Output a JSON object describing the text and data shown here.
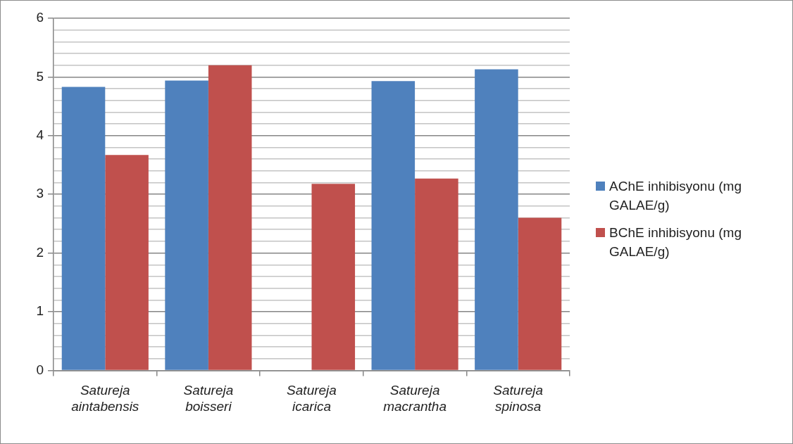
{
  "chart_data": {
    "type": "bar",
    "categories": [
      "Satureja aintabensis",
      "Satureja boisseri",
      "Satureja icarica",
      "Satureja macrantha",
      "Satureja spinosa"
    ],
    "series": [
      {
        "name": "AChE inhibisyonu (mg GALAE/g)",
        "color": "#4f81bd",
        "values": [
          4.83,
          4.94,
          null,
          4.93,
          5.13
        ]
      },
      {
        "name": "BChE inhibisyonu (mg GALAE/g)",
        "color": "#c0504d",
        "values": [
          3.67,
          5.2,
          3.18,
          3.27,
          2.6
        ]
      }
    ],
    "ylim": [
      0,
      6
    ],
    "yticks": [
      0,
      {
        "value": 0.2,
        "label": null
      },
      {
        "value": 0.4,
        "label": null
      },
      {
        "value": 0.6,
        "label": null
      },
      {
        "value": 0.8,
        "label": null
      },
      1,
      {
        "value": 1.2,
        "label": null
      },
      {
        "value": 1.4,
        "label": null
      },
      {
        "value": 1.6,
        "label": null
      },
      {
        "value": 1.8,
        "label": null
      },
      2,
      {
        "value": 2.2,
        "label": null
      },
      {
        "value": 2.4,
        "label": null
      },
      {
        "value": 2.6,
        "label": null
      },
      {
        "value": 2.8,
        "label": null
      },
      3,
      {
        "value": 3.2,
        "label": null
      },
      {
        "value": 3.4,
        "label": null
      },
      {
        "value": 3.6,
        "label": null
      },
      {
        "value": 3.8,
        "label": null
      },
      4,
      {
        "value": 4.2,
        "label": null
      },
      {
        "value": 4.4,
        "label": null
      },
      {
        "value": 4.6,
        "label": null
      },
      {
        "value": 4.8,
        "label": null
      },
      5,
      {
        "value": 5.2,
        "label": null
      },
      {
        "value": 5.4,
        "label": null
      },
      {
        "value": 5.6,
        "label": null
      },
      {
        "value": 5.8,
        "label": null
      },
      6
    ],
    "grid": "y",
    "legend": "right"
  }
}
